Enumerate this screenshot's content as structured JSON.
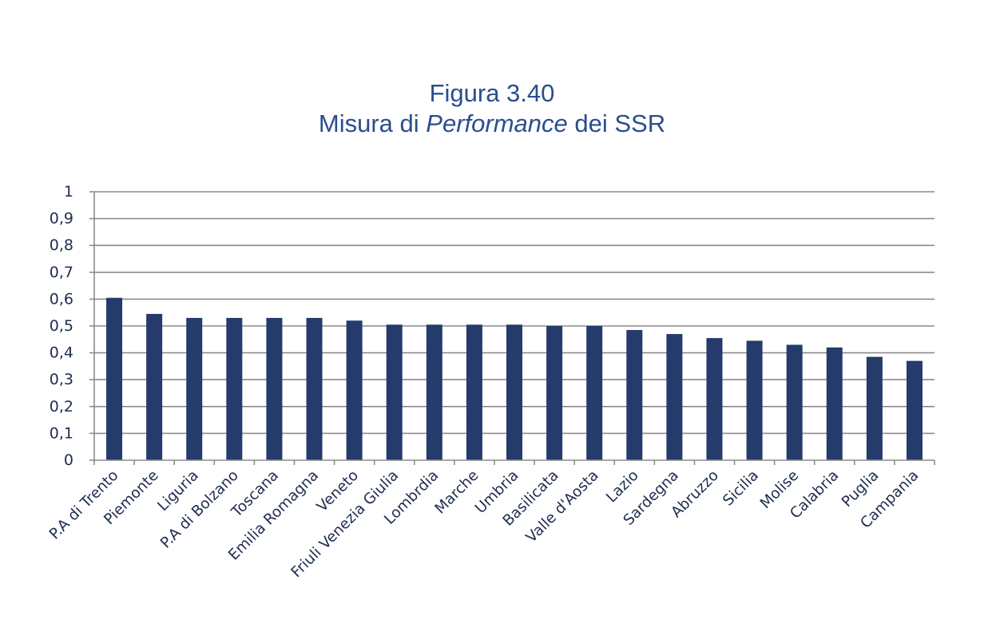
{
  "title": {
    "line1": "Figura 3.40",
    "line2_before": "Misura di ",
    "line2_italic": "Performance",
    "line2_after": " dei SSR"
  },
  "chart_data": {
    "type": "bar",
    "title": "Figura 3.40 Misura di Performance dei SSR",
    "xlabel": "",
    "ylabel": "",
    "ylim": [
      0,
      1
    ],
    "yticks": [
      "0",
      "0,1",
      "0,2",
      "0,3",
      "0,4",
      "0,5",
      "0,6",
      "0,7",
      "0,8",
      "0,9",
      "1"
    ],
    "grid": true,
    "bar_color": "#243b6c",
    "categories": [
      "P.A di Trento",
      "Piemonte",
      "Liguria",
      "P.A di Bolzano",
      "Toscana",
      "Emilia Romagna",
      "Veneto",
      "Friuli Venezia Giulia",
      "Lombrdia",
      "Marche",
      "Umbria",
      "Basilicata",
      "Valle d'Aosta",
      "Lazio",
      "Sardegna",
      "Abruzzo",
      "Sicilia",
      "Molise",
      "Calabria",
      "Puglia",
      "Campania"
    ],
    "values": [
      0.605,
      0.545,
      0.53,
      0.53,
      0.53,
      0.53,
      0.52,
      0.505,
      0.505,
      0.505,
      0.505,
      0.5,
      0.5,
      0.485,
      0.47,
      0.455,
      0.445,
      0.43,
      0.42,
      0.385,
      0.37
    ]
  }
}
